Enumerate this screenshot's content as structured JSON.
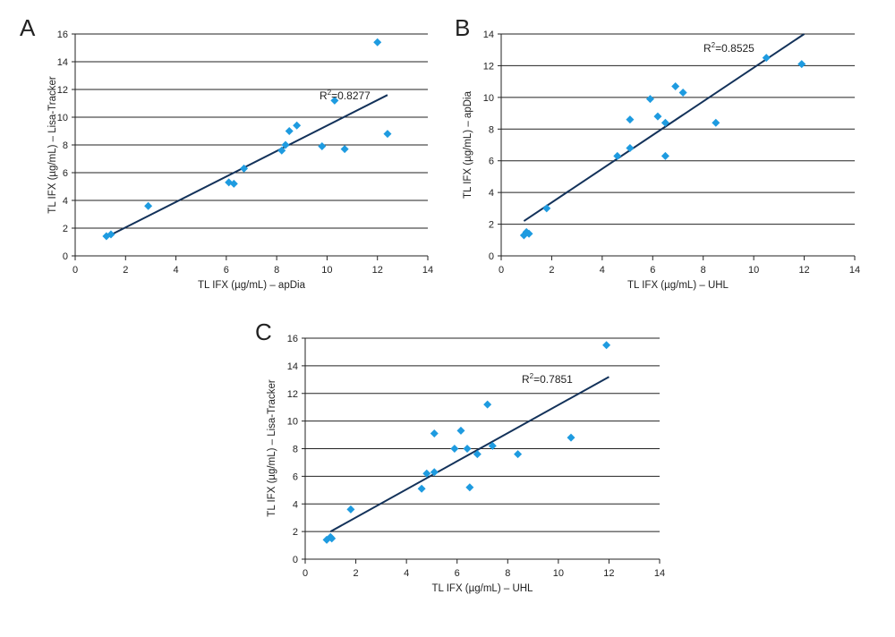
{
  "chart_data": [
    {
      "type": "scatter",
      "panel_label": "A",
      "xlabel": "TL IFX (µg/mL) – apDia",
      "ylabel": "TL IFX (µg/mL) – Lisa-Tracker",
      "xlim": [
        0,
        14
      ],
      "ylim": [
        0,
        16
      ],
      "xticks": [
        0,
        2,
        4,
        6,
        8,
        10,
        12,
        14
      ],
      "yticks": [
        0,
        2,
        4,
        6,
        8,
        10,
        12,
        14,
        16
      ],
      "grid": "horizontal",
      "marker_color": "#1e9be0",
      "trend_color": "#13325a",
      "annotation": {
        "text": "R²=0.8277",
        "base": "R",
        "sup": "2",
        "value": "=0.8277"
      },
      "trendline": [
        [
          1.4,
          1.5
        ],
        [
          12.4,
          11.6
        ]
      ],
      "points": [
        [
          1.24,
          1.42
        ],
        [
          1.42,
          1.55
        ],
        [
          2.9,
          3.6
        ],
        [
          6.1,
          5.3
        ],
        [
          6.3,
          5.2
        ],
        [
          6.7,
          6.3
        ],
        [
          8.2,
          7.6
        ],
        [
          8.35,
          8.0
        ],
        [
          8.5,
          9.0
        ],
        [
          8.8,
          9.4
        ],
        [
          9.8,
          7.9
        ],
        [
          10.3,
          11.2
        ],
        [
          10.7,
          7.7
        ],
        [
          12.0,
          15.4
        ],
        [
          12.4,
          8.8
        ]
      ]
    },
    {
      "type": "scatter",
      "panel_label": "B",
      "xlabel": "TL IFX (µg/mL) – UHL",
      "ylabel": "TL IFX (µg/mL) – apDia",
      "xlim": [
        0,
        14
      ],
      "ylim": [
        0,
        14
      ],
      "xticks": [
        0,
        2,
        4,
        6,
        8,
        10,
        12,
        14
      ],
      "yticks": [
        0,
        2,
        4,
        6,
        8,
        10,
        12,
        14
      ],
      "grid": "horizontal",
      "marker_color": "#1e9be0",
      "trend_color": "#13325a",
      "annotation": {
        "text": "R²=0.8525",
        "base": "R",
        "sup": "2",
        "value": "=0.8525"
      },
      "trendline": [
        [
          0.9,
          2.2
        ],
        [
          12.0,
          14.0
        ]
      ],
      "points": [
        [
          0.9,
          1.3
        ],
        [
          1.0,
          1.5
        ],
        [
          1.1,
          1.4
        ],
        [
          1.8,
          3.0
        ],
        [
          4.6,
          6.3
        ],
        [
          5.1,
          6.8
        ],
        [
          5.1,
          8.6
        ],
        [
          5.9,
          9.9
        ],
        [
          6.2,
          8.8
        ],
        [
          6.5,
          8.4
        ],
        [
          6.5,
          6.3
        ],
        [
          6.9,
          10.7
        ],
        [
          7.2,
          10.3
        ],
        [
          8.5,
          8.4
        ],
        [
          10.5,
          12.5
        ],
        [
          11.9,
          12.1
        ]
      ]
    },
    {
      "type": "scatter",
      "panel_label": "C",
      "xlabel": "TL IFX (µg/mL) – UHL",
      "ylabel": "TL IFX (µg/mL) – Lisa-Tracker",
      "xlim": [
        0,
        14
      ],
      "ylim": [
        0,
        16
      ],
      "xticks": [
        0,
        2,
        4,
        6,
        8,
        10,
        12,
        14
      ],
      "yticks": [
        0,
        2,
        4,
        6,
        8,
        10,
        12,
        14,
        16
      ],
      "grid": "horizontal",
      "marker_color": "#1e9be0",
      "trend_color": "#13325a",
      "annotation": {
        "text": "R²=0.7851",
        "base": "R",
        "sup": "2",
        "value": "=0.7851"
      },
      "trendline": [
        [
          1.0,
          2.0
        ],
        [
          12.0,
          13.2
        ]
      ],
      "points": [
        [
          0.85,
          1.4
        ],
        [
          1.0,
          1.6
        ],
        [
          1.05,
          1.5
        ],
        [
          1.8,
          3.6
        ],
        [
          4.6,
          5.1
        ],
        [
          4.8,
          6.2
        ],
        [
          5.1,
          6.3
        ],
        [
          5.1,
          9.1
        ],
        [
          5.9,
          8.0
        ],
        [
          6.15,
          9.3
        ],
        [
          6.4,
          8.0
        ],
        [
          6.5,
          5.2
        ],
        [
          6.8,
          7.6
        ],
        [
          7.2,
          11.2
        ],
        [
          7.4,
          8.2
        ],
        [
          8.4,
          7.6
        ],
        [
          10.5,
          8.8
        ],
        [
          11.9,
          15.5
        ]
      ]
    }
  ]
}
